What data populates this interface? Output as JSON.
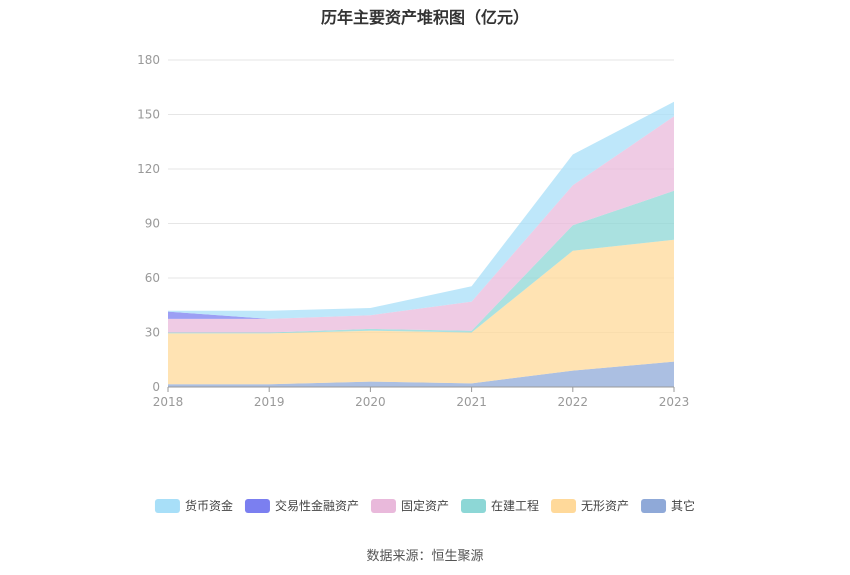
{
  "title": "历年主要资产堆积图（亿元）",
  "source": "数据来源：恒生聚源",
  "chart_data": {
    "type": "area",
    "stacked": true,
    "categories": [
      "2018",
      "2019",
      "2020",
      "2021",
      "2022",
      "2023"
    ],
    "ylim": [
      0,
      180
    ],
    "yticks": [
      0,
      30,
      60,
      90,
      120,
      150,
      180
    ],
    "grid": true,
    "legend_position": "bottom",
    "series": [
      {
        "name": "其它",
        "color": "#8fa9d8",
        "values": [
          1.5,
          1.5,
          3,
          2,
          9,
          14
        ]
      },
      {
        "name": "无形资产",
        "color": "#ffd99a",
        "values": [
          28,
          28,
          28,
          28,
          66,
          67
        ]
      },
      {
        "name": "在建工程",
        "color": "#8dd7d6",
        "values": [
          0.5,
          0.5,
          1,
          1,
          14,
          27
        ]
      },
      {
        "name": "固定资产",
        "color": "#e9b9db",
        "values": [
          7.5,
          7.5,
          7.5,
          16,
          22,
          41
        ]
      },
      {
        "name": "交易性金融资产",
        "color": "#7b7ff0",
        "values": [
          4,
          0,
          0,
          0,
          0,
          0
        ]
      },
      {
        "name": "货币资金",
        "color": "#a8dff8",
        "values": [
          0.5,
          4.5,
          4,
          8.5,
          17,
          8
        ]
      }
    ],
    "legend_order": [
      "货币资金",
      "交易性金融资产",
      "固定资产",
      "在建工程",
      "无形资产",
      "其它"
    ]
  }
}
